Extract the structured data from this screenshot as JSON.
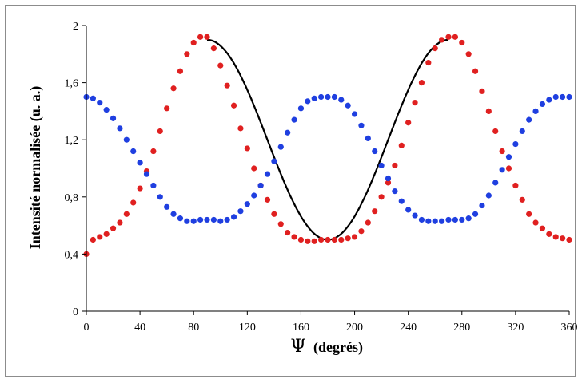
{
  "chart_data": {
    "type": "scatter",
    "xlabel_symbol": "Ψ",
    "xlabel_text": "(degrés)",
    "ylabel": "Intensité normalisée (u. a.)",
    "xlim": [
      0,
      360
    ],
    "ylim": [
      0,
      2
    ],
    "x_ticks": [
      "0",
      "40",
      "80",
      "120",
      "160",
      "200",
      "240",
      "280",
      "320",
      "360"
    ],
    "y_ticks": [
      "0",
      "0,4",
      "0,8",
      "1,2",
      "1,6",
      "2"
    ],
    "grid": false,
    "colors": {
      "series_red": "#e02020",
      "series_blue": "#1f3fe0",
      "fit_line": "#000000"
    },
    "series": [
      {
        "color": "#e02020",
        "marker": "dot",
        "x": [
          0,
          5,
          10,
          15,
          20,
          25,
          30,
          35,
          40,
          45,
          50,
          55,
          60,
          65,
          70,
          75,
          80,
          85,
          90,
          95,
          100,
          105,
          110,
          115,
          120,
          125,
          130,
          135,
          140,
          145,
          150,
          155,
          160,
          165,
          170,
          175,
          180,
          185,
          190,
          195,
          200,
          205,
          210,
          215,
          220,
          225,
          230,
          235,
          240,
          245,
          250,
          255,
          260,
          265,
          270,
          275,
          280,
          285,
          290,
          295,
          300,
          305,
          310,
          315,
          320,
          325,
          330,
          335,
          340,
          345,
          350,
          355,
          360
        ],
        "y": [
          0.4,
          0.5,
          0.52,
          0.54,
          0.58,
          0.62,
          0.68,
          0.76,
          0.86,
          0.98,
          1.12,
          1.26,
          1.42,
          1.56,
          1.68,
          1.8,
          1.88,
          1.92,
          1.92,
          1.84,
          1.72,
          1.58,
          1.44,
          1.28,
          1.14,
          1.0,
          0.88,
          0.78,
          0.68,
          0.61,
          0.55,
          0.52,
          0.5,
          0.49,
          0.49,
          0.5,
          0.5,
          0.5,
          0.5,
          0.51,
          0.52,
          0.56,
          0.62,
          0.7,
          0.8,
          0.9,
          1.02,
          1.16,
          1.32,
          1.46,
          1.6,
          1.74,
          1.84,
          1.9,
          1.92,
          1.92,
          1.88,
          1.8,
          1.68,
          1.54,
          1.4,
          1.26,
          1.12,
          1.0,
          0.88,
          0.78,
          0.68,
          0.62,
          0.58,
          0.54,
          0.52,
          0.51,
          0.5
        ]
      },
      {
        "color": "#1f3fe0",
        "marker": "dot",
        "x": [
          0,
          5,
          10,
          15,
          20,
          25,
          30,
          35,
          40,
          45,
          50,
          55,
          60,
          65,
          70,
          75,
          80,
          85,
          90,
          95,
          100,
          105,
          110,
          115,
          120,
          125,
          130,
          135,
          140,
          145,
          150,
          155,
          160,
          165,
          170,
          175,
          180,
          185,
          190,
          195,
          200,
          205,
          210,
          215,
          220,
          225,
          230,
          235,
          240,
          245,
          250,
          255,
          260,
          265,
          270,
          275,
          280,
          285,
          290,
          295,
          300,
          305,
          310,
          315,
          320,
          325,
          330,
          335,
          340,
          345,
          350,
          355,
          360
        ],
        "y": [
          1.5,
          1.49,
          1.46,
          1.41,
          1.35,
          1.28,
          1.2,
          1.12,
          1.04,
          0.96,
          0.88,
          0.8,
          0.73,
          0.68,
          0.65,
          0.63,
          0.63,
          0.64,
          0.64,
          0.64,
          0.63,
          0.64,
          0.66,
          0.7,
          0.75,
          0.81,
          0.88,
          0.96,
          1.05,
          1.15,
          1.25,
          1.34,
          1.42,
          1.47,
          1.49,
          1.5,
          1.5,
          1.5,
          1.48,
          1.44,
          1.38,
          1.3,
          1.21,
          1.12,
          1.02,
          0.93,
          0.84,
          0.77,
          0.71,
          0.67,
          0.64,
          0.63,
          0.63,
          0.63,
          0.64,
          0.64,
          0.64,
          0.65,
          0.68,
          0.74,
          0.81,
          0.9,
          0.99,
          1.08,
          1.17,
          1.26,
          1.34,
          1.4,
          1.45,
          1.48,
          1.5,
          1.5,
          1.5
        ]
      }
    ],
    "fit_line": {
      "type": "line",
      "color": "#000000",
      "x_range": [
        90,
        270
      ],
      "model": "1.2 + 0.7*cos(2*(x-90))"
    }
  }
}
